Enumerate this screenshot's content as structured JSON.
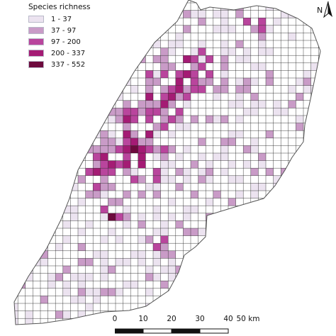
{
  "legend": {
    "title": "Species richness",
    "classes": [
      {
        "label": "1 - 37",
        "color": "#ece3f0"
      },
      {
        "label": "37 - 97",
        "color": "#c99bc7"
      },
      {
        "label": "97 - 200",
        "color": "#b9459d"
      },
      {
        "label": "200 - 337",
        "color": "#a41b74"
      },
      {
        "label": "337 - 552",
        "color": "#6d0a3d"
      }
    ]
  },
  "north_arrow": {
    "letter": "N",
    "icon": "north-arrow-icon"
  },
  "scale_bar": {
    "ticks": [
      "0",
      "10",
      "20",
      "30",
      "40",
      "50 km"
    ]
  },
  "map": {
    "grid_line_color": "#2b2b2b",
    "boundary_color": "#555555"
  }
}
